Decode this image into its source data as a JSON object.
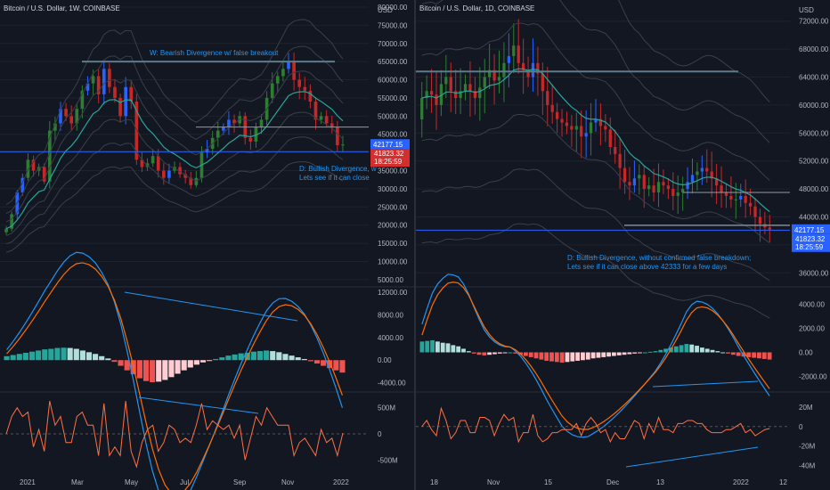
{
  "chart_data": [
    {
      "type": "candlestick",
      "title": "Bitcoin / U.S. Dollar, 1W, COINBASE",
      "price_axis": {
        "unit": "USD",
        "ticks": [
          "80000.00",
          "75000.00",
          "70000.00",
          "65000.00",
          "60000.00",
          "55000.00",
          "50000.00",
          "45000.00",
          "40000.00",
          "35000.00",
          "30000.00",
          "25000.00",
          "20000.00",
          "15000.00",
          "10000.00",
          "5000.00"
        ],
        "range": [
          3000,
          80000
        ]
      },
      "x_labels": [
        "2021",
        "Mar",
        "May",
        "Jul",
        "Sep",
        "Nov",
        "2022"
      ],
      "price_labels": {
        "upper": "42177.15",
        "lower": "41823.32",
        "timer": "18:25:59"
      },
      "annotations": [
        "W: Bearish Divergence w/ false breakout",
        "D: Bullish Divergence, w",
        "Lets see if it can close"
      ],
      "close_series": [
        19000,
        23000,
        29000,
        33000,
        38000,
        35000,
        36000,
        32000,
        46000,
        48000,
        52000,
        50000,
        48000,
        52000,
        57000,
        59000,
        61000,
        56000,
        63000,
        58000,
        55000,
        50000,
        58000,
        54000,
        38000,
        36000,
        37000,
        39000,
        35000,
        33000,
        35000,
        36000,
        34000,
        33000,
        31000,
        33000,
        40000,
        41000,
        44000,
        46000,
        47000,
        49000,
        48000,
        50000,
        44000,
        43000,
        47000,
        49000,
        55000,
        59000,
        61000,
        63000,
        65000,
        60000,
        58000,
        57000,
        54000,
        49000,
        50000,
        48000,
        47000,
        42000,
        42177
      ],
      "macd": {
        "ticks": [
          "12000.00",
          "8000.00",
          "4000.00",
          "0.00",
          "-4000.00"
        ],
        "range": [
          -5000,
          12000
        ],
        "histogram": [
          700,
          900,
          1100,
          1300,
          1500,
          1700,
          1900,
          2000,
          2150,
          2200,
          2150,
          2000,
          1700,
          1400,
          1100,
          700,
          300,
          -300,
          -1000,
          -1800,
          -2500,
          -3200,
          -3700,
          -3900,
          -3800,
          -3500,
          -3000,
          -2400,
          -1800,
          -1300,
          -800,
          -400,
          -100,
          200,
          500,
          800,
          1000,
          1200,
          1300,
          1500,
          1600,
          1700,
          1600,
          1400,
          1100,
          800,
          500,
          200,
          -200,
          -600,
          -1000,
          -1400,
          -1800,
          -2200
        ]
      },
      "volume": {
        "ticks": [
          "500M",
          "0",
          "-500M"
        ],
        "range": [
          -700,
          700
        ]
      }
    },
    {
      "type": "candlestick",
      "title": "Bitcoin / U.S. Dollar, 1D, COINBASE",
      "price_axis": {
        "unit": "USD",
        "ticks": [
          "72000.00",
          "68000.00",
          "64000.00",
          "60000.00",
          "56000.00",
          "52000.00",
          "48000.00",
          "44000.00",
          "40000.00",
          "36000.00"
        ],
        "range": [
          34000,
          74000
        ]
      },
      "x_labels": [
        "18",
        "Nov",
        "15",
        "Dec",
        "13",
        "2022",
        "12"
      ],
      "price_labels": {
        "upper": "42177.15",
        "lower": "41823.32",
        "timer": "18:25:59"
      },
      "annotations": [
        "D: Bullish Divergence, without confirmed false breakdown;",
        "Lets see if it can close above 42333 for a few days"
      ],
      "close_series": [
        61000,
        62000,
        61500,
        60000,
        63000,
        64000,
        62000,
        61000,
        62000,
        63000,
        62000,
        61000,
        62500,
        64000,
        65000,
        63500,
        64000,
        66000,
        67000,
        68500,
        66000,
        65000,
        64000,
        66000,
        64500,
        62000,
        60000,
        59000,
        58000,
        57500,
        57000,
        56500,
        57000,
        55500,
        56000,
        57500,
        58000,
        57000,
        56500,
        54000,
        53000,
        51000,
        49000,
        48500,
        49500,
        50000,
        48000,
        48500,
        47500,
        49000,
        48500,
        48000,
        47000,
        47500,
        48000,
        49000,
        50000,
        50500,
        51000,
        50500,
        49500,
        48500,
        47500,
        47000,
        46500,
        46500,
        47000,
        46000,
        45500,
        44000,
        43000,
        42500,
        42177
      ]
    }
  ],
  "right_macd": {
    "ticks": [
      "4000.00",
      "2000.00",
      "0.00",
      "-2000.00"
    ],
    "range": [
      -3000,
      5000
    ],
    "histogram": [
      900,
      950,
      1000,
      900,
      800,
      750,
      600,
      500,
      300,
      100,
      -100,
      -200,
      -250,
      -200,
      -150,
      -100,
      -50,
      0,
      -100,
      -200,
      -300,
      -400,
      -500,
      -600,
      -700,
      -750,
      -800,
      -850,
      -800,
      -750,
      -700,
      -650,
      -600,
      -500,
      -450,
      -400,
      -350,
      -300,
      -250,
      -200,
      -150,
      -100,
      -50,
      0,
      50,
      100,
      200,
      300,
      400,
      500,
      600,
      700,
      650,
      550,
      400,
      300,
      200,
      100,
      0,
      -100,
      -200,
      -300,
      -350,
      -400,
      -450,
      -500,
      -550,
      -600
    ]
  },
  "right_volume": {
    "ticks": [
      "20M",
      "0",
      "-20M",
      "-40M"
    ],
    "range": [
      -45,
      30
    ]
  },
  "colors": {
    "bg": "#131722",
    "grid": "#1e222d",
    "bull_candle": "#2e7d32",
    "bear_candle": "#c62828",
    "blue_candle": "#2962ff",
    "band_line": "#3a3f4b",
    "ema_line": "#26a69a",
    "horizontal_line": "#5d7b8a",
    "support_line": "#2962ff",
    "macd_line": "#2196f3",
    "signal_line": "#ff6d00",
    "hist_up": "#26a69a",
    "hist_up_light": "#b2dfdb",
    "hist_down": "#ef5350",
    "hist_down_light": "#ffcdd2",
    "volume_line": "#ff7043",
    "annotation": "#2196f3",
    "price_blue": "#2962ff",
    "price_red": "#d32f2f"
  }
}
